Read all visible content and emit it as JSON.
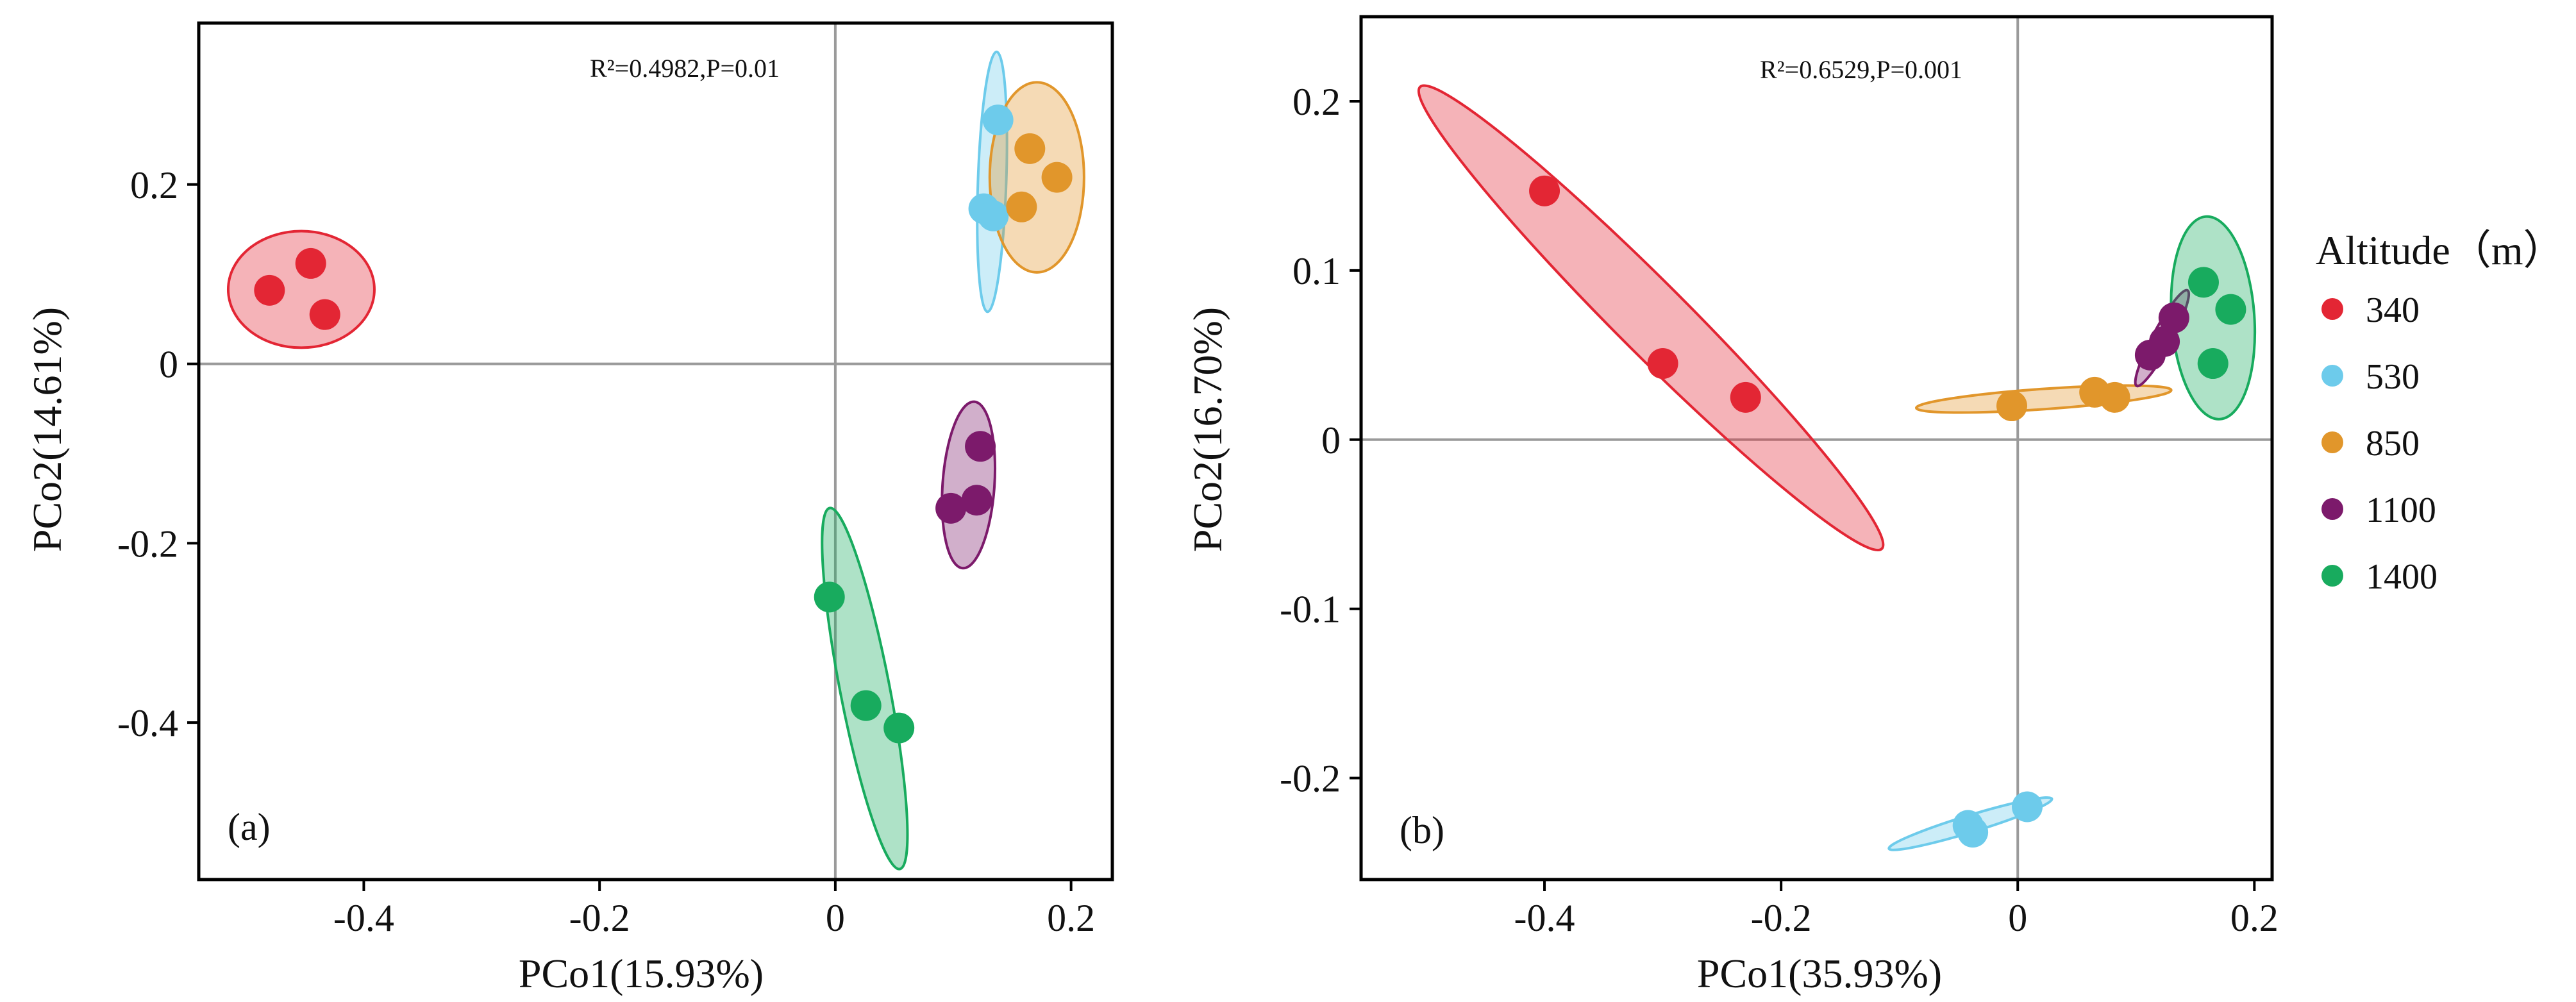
{
  "colors": {
    "340": "#e32634",
    "530": "#6dcbeb",
    "850": "#e1962b",
    "1100": "#7c1a6b",
    "1400": "#18ab5e"
  },
  "legend": {
    "title": "Altitude（m）",
    "entries": [
      {
        "label": "340",
        "group": "340"
      },
      {
        "label": "530",
        "group": "530"
      },
      {
        "label": "850",
        "group": "850"
      },
      {
        "label": "1100",
        "group": "1100"
      },
      {
        "label": "1400",
        "group": "1400"
      }
    ]
  },
  "chart_data": [
    {
      "type": "scatter",
      "panel_label": "(a)",
      "stat": "R²=0.4982,P=0.01",
      "xlabel": "PCo1(15.93%)",
      "ylabel": "PCo2(14.61%)",
      "xlim": [
        -0.54,
        0.235
      ],
      "ylim": [
        -0.575,
        0.38
      ],
      "xticks": [
        -0.4,
        -0.2,
        0,
        0.2
      ],
      "xtick_labels": [
        "-0.4",
        "-0.2",
        "0",
        "0.2"
      ],
      "yticks": [
        -0.4,
        -0.2,
        0,
        0.2
      ],
      "ytick_labels": [
        "-0.4",
        "-0.2",
        "0",
        "0.2"
      ],
      "series": [
        {
          "name": "340",
          "points": [
            [
              -0.48,
              0.082
            ],
            [
              -0.445,
              0.112
            ],
            [
              -0.433,
              0.055
            ]
          ],
          "ellipse": {
            "cx": -0.453,
            "cy": 0.083,
            "rx": 0.062,
            "ry": 0.065,
            "angle": 0
          }
        },
        {
          "name": "530",
          "points": [
            [
              0.138,
              0.272
            ],
            [
              0.126,
              0.173
            ],
            [
              0.134,
              0.165
            ]
          ],
          "ellipse": {
            "cx": 0.133,
            "cy": 0.203,
            "rx": 0.012,
            "ry": 0.145,
            "angle": 2
          }
        },
        {
          "name": "850",
          "points": [
            [
              0.165,
              0.24
            ],
            [
              0.188,
              0.208
            ],
            [
              0.158,
              0.175
            ]
          ],
          "ellipse": {
            "cx": 0.171,
            "cy": 0.208,
            "rx": 0.04,
            "ry": 0.106,
            "angle": 0
          }
        },
        {
          "name": "1100",
          "points": [
            [
              0.123,
              -0.092
            ],
            [
              0.12,
              -0.152
            ],
            [
              0.098,
              -0.161
            ]
          ],
          "ellipse": {
            "cx": 0.113,
            "cy": -0.135,
            "rx": 0.022,
            "ry": 0.093,
            "angle": 4
          }
        },
        {
          "name": "1400",
          "points": [
            [
              -0.005,
              -0.26
            ],
            [
              0.026,
              -0.381
            ],
            [
              0.054,
              -0.406
            ]
          ],
          "ellipse": {
            "cx": 0.025,
            "cy": -0.362,
            "rx": 0.021,
            "ry": 0.205,
            "angle": -11
          }
        }
      ]
    },
    {
      "type": "scatter",
      "panel_label": "(b)",
      "stat": "R²=0.6529,P=0.001",
      "xlabel": "PCo1(35.93%)",
      "ylabel": "PCo2(16.70%)",
      "xlim": [
        -0.555,
        0.215
      ],
      "ylim": [
        -0.26,
        0.25
      ],
      "xticks": [
        -0.4,
        -0.2,
        0,
        0.2
      ],
      "xtick_labels": [
        "-0.4",
        "-0.2",
        "0",
        "0.2"
      ],
      "yticks": [
        -0.2,
        -0.1,
        0,
        0.1,
        0.2
      ],
      "ytick_labels": [
        "-0.2",
        "-0.1",
        "0",
        "0.1",
        "0.2"
      ],
      "series": [
        {
          "name": "340",
          "points": [
            [
              -0.4,
              0.147
            ],
            [
              -0.3,
              0.045
            ],
            [
              -0.23,
              0.025
            ]
          ],
          "ellipse": {
            "cx": -0.31,
            "cy": 0.072,
            "rx": 0.276,
            "ry": 0.021,
            "angle": 45
          }
        },
        {
          "name": "530",
          "points": [
            [
              -0.042,
              -0.228
            ],
            [
              -0.038,
              -0.232
            ],
            [
              0.008,
              -0.217
            ]
          ],
          "ellipse": {
            "cx": -0.04,
            "cy": -0.227,
            "rx": 0.072,
            "ry": 0.005,
            "angle": -17
          }
        },
        {
          "name": "850",
          "points": [
            [
              -0.005,
              0.02
            ],
            [
              0.065,
              0.028
            ],
            [
              0.082,
              0.025
            ]
          ],
          "ellipse": {
            "cx": 0.022,
            "cy": 0.024,
            "rx": 0.108,
            "ry": 0.006,
            "angle": -4
          }
        },
        {
          "name": "1100",
          "points": [
            [
              0.112,
              0.05
            ],
            [
              0.124,
              0.058
            ],
            [
              0.132,
              0.072
            ]
          ],
          "ellipse": {
            "cx": 0.122,
            "cy": 0.06,
            "rx": 0.008,
            "ry": 0.032,
            "angle": 28
          }
        },
        {
          "name": "1400",
          "points": [
            [
              0.157,
              0.093
            ],
            [
              0.18,
              0.077
            ],
            [
              0.165,
              0.045
            ]
          ],
          "ellipse": {
            "cx": 0.165,
            "cy": 0.072,
            "rx": 0.035,
            "ry": 0.06,
            "angle": -4
          }
        }
      ]
    }
  ]
}
